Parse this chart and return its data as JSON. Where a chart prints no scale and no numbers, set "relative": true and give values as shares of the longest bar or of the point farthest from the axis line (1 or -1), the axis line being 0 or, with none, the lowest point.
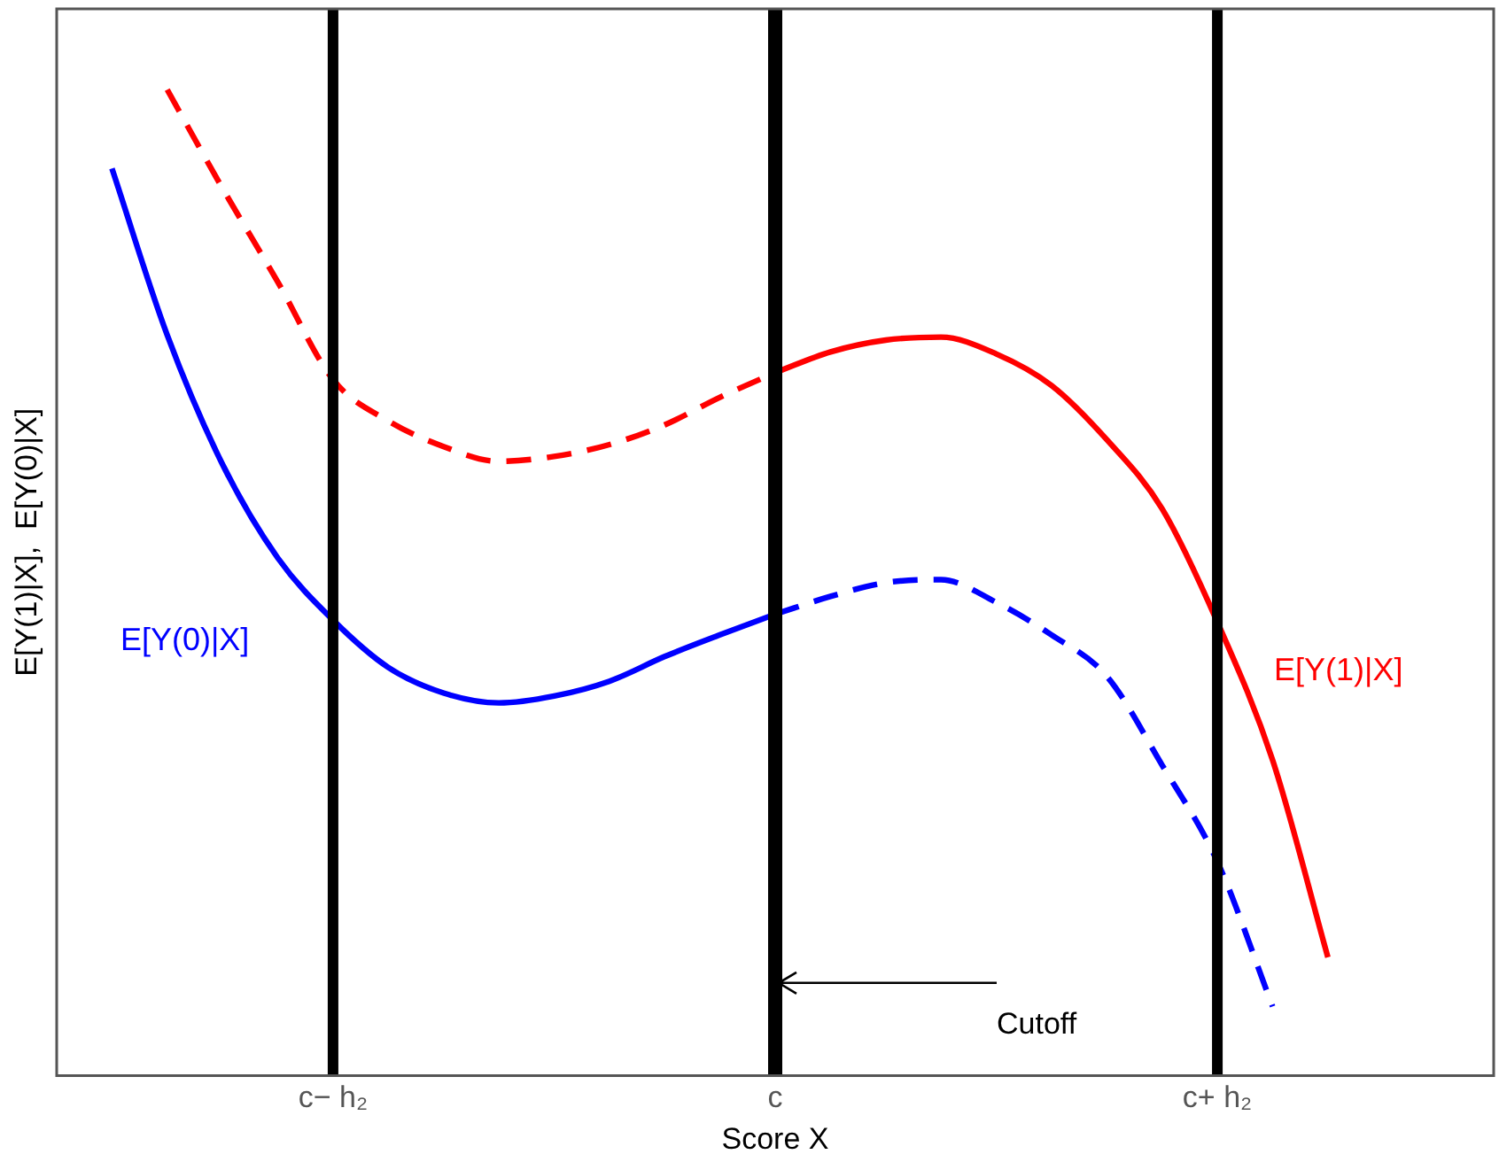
{
  "chart_data": {
    "type": "line",
    "relative": true,
    "xlabel": "Score X",
    "ylabel": "E[Y(1)|X],  E[Y(0)|X]",
    "categories": [
      null,
      null,
      null,
      null,
      null,
      "c− h₂",
      null,
      null,
      null,
      null,
      null,
      null,
      null,
      "c",
      null,
      null,
      null,
      null,
      null,
      null,
      null,
      "c+ h₂",
      null,
      null,
      null,
      null,
      null
    ],
    "series": [
      {
        "color": "#ff0000",
        "line_style": "dashed",
        "values": [
          null,
          null,
          1,
          0.9,
          0.805,
          0.706,
          0.664,
          0.638,
          0.623,
          0.628,
          0.64,
          0.66,
          0.688,
          0.713,
          null,
          null,
          null,
          null,
          null,
          null,
          null,
          null,
          null,
          null,
          null,
          null,
          null
        ]
      },
      {
        "name": "E[Y(1)|X]",
        "color": "#ff0000",
        "line_style": "solid",
        "values": [
          null,
          null,
          null,
          null,
          null,
          null,
          null,
          null,
          null,
          null,
          null,
          null,
          null,
          0.713,
          0.734,
          0.746,
          0.749,
          0.732,
          0.7,
          0.645,
          0.575,
          0.46,
          0.32,
          0.12,
          null,
          null,
          null
        ]
      },
      {
        "name": "E[Y(0)|X]",
        "color": "#0000ff",
        "line_style": "solid",
        "values": [
          null,
          0.92,
          0.751,
          0.62,
          0.525,
          0.462,
          0.414,
          0.388,
          0.378,
          0.385,
          0.4,
          0.425,
          0.447,
          0.468,
          null,
          null,
          null,
          null,
          null,
          null,
          null,
          null,
          null,
          null,
          null,
          null,
          null
        ]
      },
      {
        "color": "#0000ff",
        "line_style": "dashed",
        "values": [
          null,
          null,
          null,
          null,
          null,
          null,
          null,
          null,
          null,
          null,
          null,
          null,
          null,
          0.468,
          0.486,
          0.5,
          0.503,
          0.48,
          0.447,
          0.405,
          0.315,
          0.217,
          0.07,
          null,
          null,
          null,
          null
        ]
      }
    ],
    "ref_lines": [
      {
        "axis": "x",
        "value": "c− h₂",
        "color": "#000000"
      },
      {
        "axis": "x",
        "value": "c",
        "color": "#000000"
      },
      {
        "axis": "x",
        "value": "c+ h₂",
        "color": "#000000"
      }
    ],
    "annotations": [
      {
        "text": "Cutoff",
        "x": "c",
        "y": 0.094
      }
    ],
    "legend": false,
    "grid": false,
    "marker": "none"
  }
}
